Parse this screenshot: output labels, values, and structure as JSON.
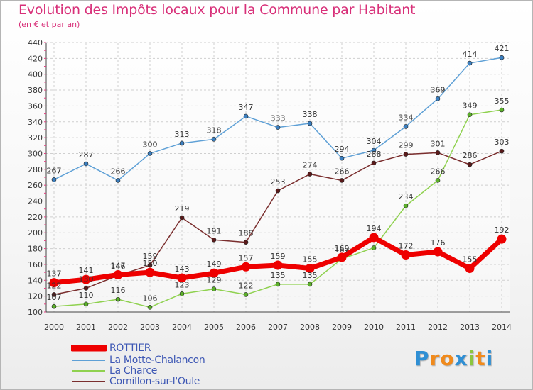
{
  "header": {
    "title": "Evolution des Impôts locaux pour la Commune par Habitant",
    "subtitle": "(en € et par an)"
  },
  "logo": {
    "letters": [
      "P",
      "r",
      "o",
      "x",
      "i",
      "t",
      "i"
    ],
    "colors": [
      "#2f8fd4",
      "#f08a1c",
      "#f08a1c",
      "#2f8fd4",
      "#8cc63f",
      "#f08a1c",
      "#2f8fd4"
    ]
  },
  "chart_data": {
    "type": "line",
    "title": "Evolution des Impôts locaux pour la Commune par Habitant",
    "xlabel": "",
    "ylabel": "(en € et par an)",
    "x": [
      "2000",
      "2001",
      "2002",
      "2003",
      "2004",
      "2005",
      "2006",
      "2007",
      "2008",
      "2009",
      "2010",
      "2011",
      "2012",
      "2013",
      "2014"
    ],
    "ylim": [
      100,
      440
    ],
    "yticks": [
      100,
      120,
      140,
      160,
      180,
      200,
      220,
      240,
      260,
      280,
      300,
      320,
      340,
      360,
      380,
      400,
      420,
      440
    ],
    "grid": true,
    "legend_position": "bottom-left",
    "series": [
      {
        "name": "La Charce",
        "color": "#8fd14f",
        "marker": "#5bb02a",
        "values": [
          107,
          110,
          116,
          106,
          123,
          129,
          122,
          135,
          135,
          167,
          181,
          234,
          266,
          349,
          355
        ],
        "labels": [
          "107",
          "110",
          "116",
          "106",
          "123",
          "129",
          "122",
          "135",
          "135",
          "167",
          "",
          "234",
          "266",
          "349",
          "355"
        ]
      },
      {
        "name": "Cornillon-sur-l'Oule",
        "color": "#7a2e2e",
        "marker": "#5a1a1a",
        "values": [
          122,
          130,
          146,
          159,
          219,
          191,
          188,
          253,
          274,
          266,
          288,
          299,
          301,
          286,
          303
        ],
        "labels": [
          "122",
          "130",
          "146",
          "159",
          "219",
          "191",
          "188",
          "253",
          "274",
          "266",
          "288",
          "299",
          "301",
          "286",
          "303"
        ]
      },
      {
        "name": "La Motte-Chalancon",
        "color": "#5ea0d6",
        "marker": "#3b7fc0",
        "values": [
          267,
          287,
          266,
          300,
          313,
          318,
          347,
          333,
          338,
          294,
          304,
          334,
          369,
          414,
          421
        ],
        "labels": [
          "267",
          "287",
          "266",
          "300",
          "313",
          "318",
          "347",
          "333",
          "338",
          "294",
          "304",
          "334",
          "369",
          "414",
          "421"
        ]
      },
      {
        "name": "ROTTIER",
        "color": "#ee0000",
        "marker": "#ee0000",
        "values": [
          137,
          141,
          147,
          150,
          143,
          149,
          157,
          159,
          155,
          169,
          194,
          172,
          176,
          155,
          192
        ],
        "labels": [
          "137",
          "141",
          "147",
          "150",
          "143",
          "149",
          "157",
          "159",
          "155",
          "169",
          "194",
          "172",
          "176",
          "155",
          "192"
        ]
      }
    ],
    "legend": [
      {
        "name": "ROTTIER",
        "color": "#ee0000",
        "thick": true
      },
      {
        "name": "La Motte-Chalancon",
        "color": "#5ea0d6",
        "thick": false
      },
      {
        "name": "La Charce",
        "color": "#8fd14f",
        "thick": false
      },
      {
        "name": "Cornillon-sur-l'Oule",
        "color": "#7a2e2e",
        "thick": false
      }
    ]
  }
}
